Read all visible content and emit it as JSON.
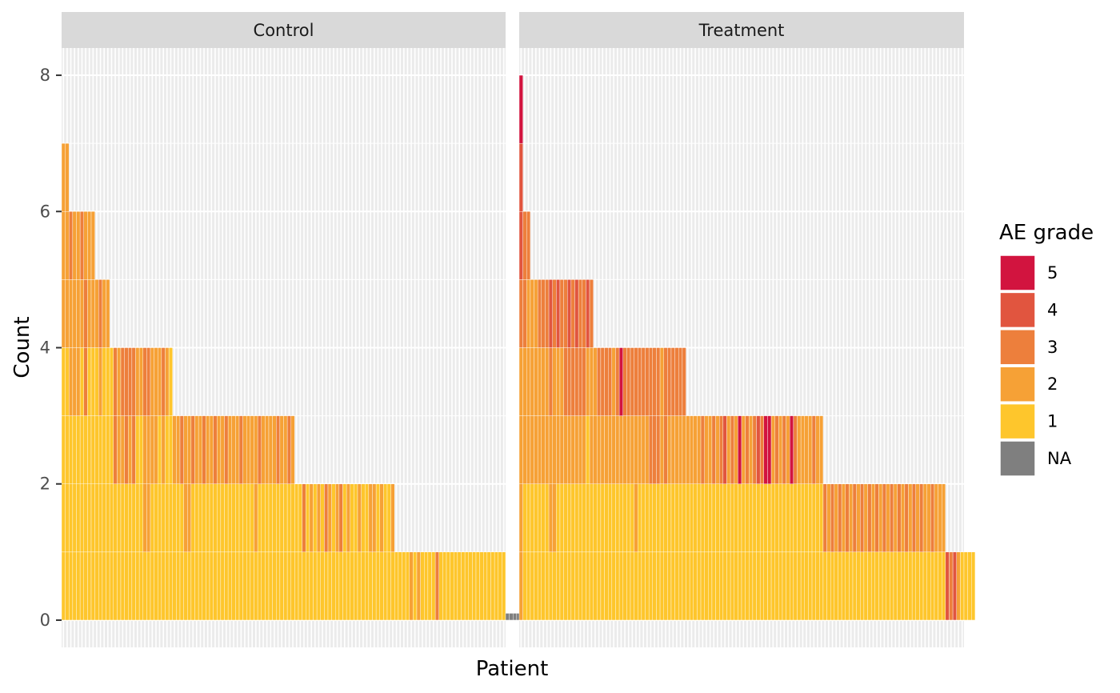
{
  "chart_data": {
    "type": "bar",
    "subtype": "stacked-per-patient, faceted",
    "xlabel": "Patient",
    "ylabel": "Count",
    "ylim": [
      -0.4,
      8.4
    ],
    "yticks": [
      0,
      2,
      4,
      6,
      8
    ],
    "grid": true,
    "legend": {
      "title": "AE grade",
      "placement": "right",
      "entries": [
        {
          "label": "5",
          "color": "#D2143F"
        },
        {
          "label": "4",
          "color": "#E1553F"
        },
        {
          "label": "3",
          "color": "#ED7F3C"
        },
        {
          "label": "2",
          "color": "#F6A136"
        },
        {
          "label": "1",
          "color": "#FEC62C"
        },
        {
          "label": "NA",
          "color": "#7F7F7F"
        }
      ]
    },
    "facets": [
      {
        "label": "Control",
        "slots": 120,
        "patients": [
          [
            1,
            1,
            1,
            1,
            2,
            2,
            2
          ],
          [
            1,
            1,
            1,
            1,
            2,
            2,
            2
          ],
          [
            1,
            1,
            1,
            2,
            2,
            3
          ],
          [
            1,
            1,
            1,
            2,
            2,
            2
          ],
          [
            1,
            1,
            1,
            2,
            2,
            2
          ],
          [
            1,
            1,
            1,
            1,
            2,
            3
          ],
          [
            1,
            1,
            1,
            3,
            3,
            2
          ],
          [
            1,
            1,
            1,
            1,
            2,
            2
          ],
          [
            1,
            1,
            1,
            1,
            2,
            2
          ],
          [
            1,
            1,
            1,
            1,
            2
          ],
          [
            1,
            1,
            1,
            2,
            3
          ],
          [
            1,
            1,
            1,
            1,
            2
          ],
          [
            1,
            1,
            1,
            1,
            2
          ],
          [
            1,
            1,
            1,
            1
          ],
          [
            1,
            1,
            3,
            3
          ],
          [
            1,
            1,
            2,
            2
          ],
          [
            1,
            1,
            2,
            3
          ],
          [
            1,
            1,
            3,
            3
          ],
          [
            1,
            1,
            2,
            3
          ],
          [
            1,
            1,
            3,
            3
          ],
          [
            1,
            1,
            1,
            2
          ],
          [
            1,
            1,
            1,
            2
          ],
          [
            1,
            2,
            2,
            3
          ],
          [
            1,
            2,
            2,
            3
          ],
          [
            1,
            1,
            2,
            2
          ],
          [
            1,
            1,
            2,
            2
          ],
          [
            1,
            1,
            1,
            2
          ],
          [
            1,
            1,
            2,
            3
          ],
          [
            1,
            1,
            1,
            2
          ],
          [
            1,
            1,
            1,
            1
          ],
          [
            1,
            1,
            2
          ],
          [
            1,
            1,
            2
          ],
          [
            1,
            1,
            3
          ],
          [
            1,
            2,
            2
          ],
          [
            1,
            2,
            2
          ],
          [
            1,
            1,
            3
          ],
          [
            1,
            1,
            2
          ],
          [
            1,
            1,
            2
          ],
          [
            1,
            1,
            3
          ],
          [
            1,
            1,
            2
          ],
          [
            1,
            1,
            2
          ],
          [
            1,
            1,
            3
          ],
          [
            1,
            1,
            2
          ],
          [
            1,
            1,
            2
          ],
          [
            1,
            1,
            3
          ],
          [
            1,
            1,
            2
          ],
          [
            1,
            1,
            2
          ],
          [
            1,
            1,
            2
          ],
          [
            1,
            1,
            3
          ],
          [
            1,
            1,
            2
          ],
          [
            1,
            1,
            2
          ],
          [
            1,
            1,
            2
          ],
          [
            1,
            2,
            2
          ],
          [
            1,
            1,
            3
          ],
          [
            1,
            1,
            2
          ],
          [
            1,
            1,
            2
          ],
          [
            1,
            1,
            2
          ],
          [
            1,
            1,
            2
          ],
          [
            1,
            1,
            3
          ],
          [
            1,
            1,
            2
          ],
          [
            1,
            1,
            2
          ],
          [
            1,
            1,
            3
          ],
          [
            1,
            1,
            2
          ],
          [
            1,
            1
          ],
          [
            1,
            1
          ],
          [
            1,
            3
          ],
          [
            1,
            1
          ],
          [
            1,
            2
          ],
          [
            1,
            1
          ],
          [
            1,
            2
          ],
          [
            1,
            1
          ],
          [
            1,
            3
          ],
          [
            1,
            2
          ],
          [
            1,
            1
          ],
          [
            1,
            2
          ],
          [
            1,
            3
          ],
          [
            1,
            1
          ],
          [
            1,
            2
          ],
          [
            1,
            1
          ],
          [
            1,
            1
          ],
          [
            1,
            2
          ],
          [
            1,
            1
          ],
          [
            1,
            1
          ],
          [
            1,
            2
          ],
          [
            1,
            2
          ],
          [
            1,
            1
          ],
          [
            1,
            2
          ],
          [
            1,
            1
          ],
          [
            1,
            1
          ],
          [
            1,
            2
          ],
          [
            1
          ],
          [
            1
          ],
          [
            1
          ],
          [
            1
          ],
          [
            2
          ],
          [
            1
          ],
          [
            2
          ],
          [
            1
          ],
          [
            1
          ],
          [
            1
          ],
          [
            1
          ],
          [
            3
          ],
          [
            1
          ],
          [
            1
          ],
          [
            1
          ],
          [
            1
          ],
          [
            1
          ],
          [
            1
          ],
          [
            1
          ],
          [
            1
          ],
          [
            1
          ],
          [
            1
          ],
          [
            1
          ],
          [
            1
          ],
          [
            1
          ],
          [
            1
          ],
          [
            1
          ],
          [
            1
          ],
          [
            1
          ],
          [
            1
          ],
          [
            "NA"
          ],
          [
            "NA"
          ],
          [
            "NA"
          ],
          [
            "NA"
          ]
        ]
      },
      {
        "label": "Treatment",
        "slots": 120,
        "patients": [
          [
            2,
            2,
            2,
            2,
            3,
            4,
            4,
            5
          ],
          [
            1,
            1,
            2,
            2,
            3,
            3
          ],
          [
            1,
            1,
            2,
            2,
            2,
            3
          ],
          [
            1,
            1,
            2,
            2,
            2
          ],
          [
            1,
            1,
            2,
            2,
            2
          ],
          [
            1,
            1,
            2,
            2,
            3
          ],
          [
            1,
            1,
            2,
            2,
            3
          ],
          [
            1,
            1,
            2,
            2,
            3
          ],
          [
            1,
            2,
            2,
            3,
            4
          ],
          [
            1,
            2,
            2,
            2,
            3
          ],
          [
            1,
            1,
            2,
            2,
            4
          ],
          [
            1,
            1,
            2,
            2,
            3
          ],
          [
            1,
            1,
            2,
            3,
            3
          ],
          [
            1,
            1,
            2,
            3,
            4
          ],
          [
            1,
            1,
            2,
            3,
            3
          ],
          [
            1,
            1,
            2,
            3,
            4
          ],
          [
            1,
            1,
            2,
            3,
            3
          ],
          [
            1,
            1,
            2,
            3,
            3
          ],
          [
            1,
            1,
            1,
            2,
            4
          ],
          [
            1,
            1,
            2,
            2,
            3
          ],
          [
            1,
            1,
            2,
            2
          ],
          [
            1,
            1,
            2,
            3
          ],
          [
            1,
            1,
            2,
            3
          ],
          [
            1,
            1,
            2,
            3
          ],
          [
            1,
            1,
            2,
            3
          ],
          [
            1,
            1,
            2,
            2
          ],
          [
            1,
            1,
            2,
            3
          ],
          [
            1,
            1,
            2,
            5
          ],
          [
            1,
            1,
            2,
            3
          ],
          [
            1,
            1,
            2,
            3
          ],
          [
            1,
            1,
            2,
            3
          ],
          [
            1,
            2,
            2,
            3
          ],
          [
            1,
            1,
            2,
            3
          ],
          [
            1,
            1,
            2,
            3
          ],
          [
            1,
            1,
            2,
            3
          ],
          [
            1,
            1,
            3,
            3
          ],
          [
            1,
            1,
            3,
            3
          ],
          [
            1,
            1,
            3,
            3
          ],
          [
            1,
            1,
            2,
            2
          ],
          [
            1,
            1,
            3,
            3
          ],
          [
            1,
            1,
            2,
            3
          ],
          [
            1,
            1,
            2,
            3
          ],
          [
            1,
            1,
            2,
            3
          ],
          [
            1,
            1,
            2,
            3
          ],
          [
            1,
            1,
            2,
            3
          ],
          [
            1,
            1,
            2
          ],
          [
            1,
            1,
            2
          ],
          [
            1,
            1,
            2
          ],
          [
            1,
            1,
            2
          ],
          [
            1,
            1,
            3
          ],
          [
            1,
            1,
            2
          ],
          [
            1,
            1,
            2
          ],
          [
            1,
            1,
            3
          ],
          [
            1,
            1,
            2
          ],
          [
            1,
            1,
            3
          ],
          [
            1,
            1,
            4
          ],
          [
            1,
            1,
            2
          ],
          [
            1,
            1,
            3
          ],
          [
            1,
            1,
            2
          ],
          [
            1,
            1,
            5
          ],
          [
            1,
            1,
            2
          ],
          [
            1,
            1,
            3
          ],
          [
            1,
            1,
            2
          ],
          [
            1,
            1,
            3
          ],
          [
            1,
            1,
            4
          ],
          [
            1,
            1,
            3
          ],
          [
            1,
            1,
            5
          ],
          [
            1,
            1,
            5
          ],
          [
            1,
            1,
            2
          ],
          [
            1,
            1,
            3
          ],
          [
            1,
            1,
            2
          ],
          [
            1,
            1,
            3
          ],
          [
            1,
            1,
            2
          ],
          [
            1,
            1,
            5
          ],
          [
            1,
            1,
            3
          ],
          [
            1,
            1,
            2
          ],
          [
            1,
            1,
            2
          ],
          [
            1,
            1,
            2
          ],
          [
            1,
            1,
            2
          ],
          [
            1,
            1,
            3
          ],
          [
            1,
            1,
            2
          ],
          [
            1,
            1,
            2
          ],
          [
            1,
            3
          ],
          [
            1,
            2
          ],
          [
            1,
            3
          ],
          [
            1,
            2
          ],
          [
            1,
            3
          ],
          [
            1,
            2
          ],
          [
            1,
            3
          ],
          [
            1,
            2
          ],
          [
            1,
            3
          ],
          [
            1,
            2
          ],
          [
            1,
            3
          ],
          [
            1,
            2
          ],
          [
            1,
            3
          ],
          [
            1,
            2
          ],
          [
            1,
            3
          ],
          [
            1,
            2
          ],
          [
            1,
            3
          ],
          [
            1,
            2
          ],
          [
            1,
            3
          ],
          [
            1,
            2
          ],
          [
            1,
            3
          ],
          [
            1,
            2
          ],
          [
            1,
            3
          ],
          [
            1,
            2
          ],
          [
            1,
            3
          ],
          [
            1,
            2
          ],
          [
            1,
            3
          ],
          [
            1,
            2
          ],
          [
            1,
            2
          ],
          [
            1,
            3
          ],
          [
            1,
            2
          ],
          [
            1,
            2
          ],
          [
            1,
            2
          ],
          [
            4
          ],
          [
            3
          ],
          [
            4
          ],
          [
            2
          ],
          [
            1
          ],
          [
            1
          ],
          [
            1
          ],
          [
            1
          ]
        ]
      }
    ]
  }
}
